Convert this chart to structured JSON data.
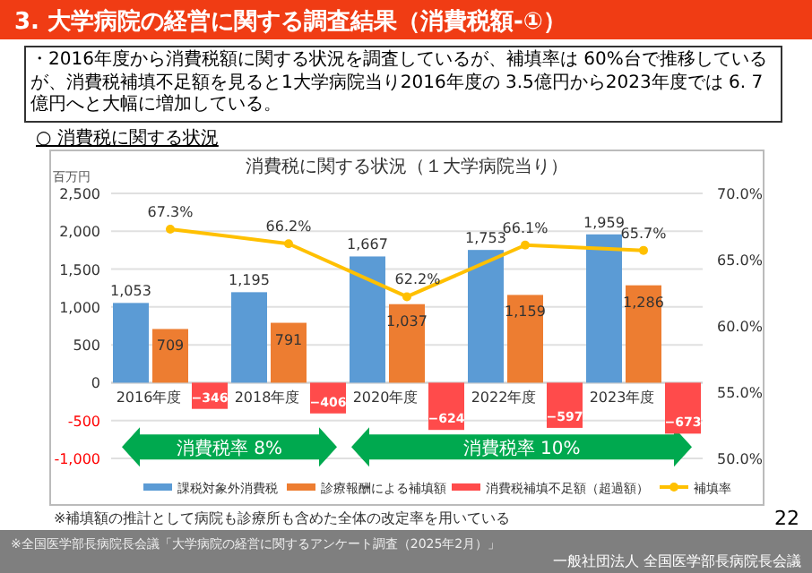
{
  "chart_data": {
    "type": "bar",
    "title": "消費税に関する状況（１大学病院当り）",
    "ylabel": "百万円",
    "categories": [
      "2016年度",
      "2018年度",
      "2020年度",
      "2022年度",
      "2023年度"
    ],
    "series": [
      {
        "name": "課税対象外消費税",
        "color": "#5b9bd5",
        "values": [
          1053,
          1195,
          1667,
          1753,
          1959
        ],
        "value_labels": [
          "1,053",
          "1,195",
          "1,667",
          "1,753",
          "1,959"
        ]
      },
      {
        "name": "診療報酬による補填額",
        "color": "#ed7d31",
        "values": [
          709,
          791,
          1037,
          1159,
          1286
        ],
        "value_labels": [
          "709",
          "791",
          "1,037",
          "1,159",
          "1,286"
        ]
      },
      {
        "name": "消費税補填不足額（超過額）",
        "color": "#ff4b4b",
        "values": [
          -346,
          -406,
          -624,
          -597,
          -673
        ]
      },
      {
        "name": "補填率",
        "type": "line",
        "axis": "y2",
        "color": "#ffc000",
        "marker": "circle",
        "values": [
          67.3,
          66.2,
          62.2,
          66.1,
          65.7
        ],
        "value_labels": [
          "67.3%",
          "66.2%",
          "62.2%",
          "66.1%",
          "65.7%"
        ]
      }
    ],
    "ylim": [
      -1000,
      2500
    ],
    "yticks": [
      {
        "value": -1000,
        "label": "-1,000"
      },
      -500,
      0,
      500,
      {
        "value": 1000,
        "label": "1,000"
      },
      {
        "value": 1500,
        "label": "1,500"
      },
      {
        "value": 2000,
        "label": "2,000"
      },
      {
        "value": 2500,
        "label": "2,500"
      }
    ],
    "y2lim": [
      50,
      70
    ],
    "y2ticks": [
      {
        "value": 50,
        "label": "50.0%"
      },
      {
        "value": 55,
        "label": "55.0%"
      },
      {
        "value": 60,
        "label": "60.0%"
      },
      {
        "value": 65,
        "label": "65.0%"
      },
      {
        "value": 70,
        "label": "70.0%"
      }
    ],
    "grid": "y",
    "legend": "bottom",
    "data_labels": true,
    "annotations": [
      "3. 大学病院の経営に関する調査結果（消費税額-①）",
      "・2016年度から消費税額に関する状況を調査しているが、補填率は 60%台で推移しているが、消費税補填不足額を見ると1大学病院当り2016年度の 3.5億円から2023年度では 6. 7億円へと大幅に増加している。",
      "○ 消費税に関する状況",
      "消費税率 8%",
      "消費税率 10%",
      "※補填額の推計として病院も診療所も含めた全体の改定率を用いている",
      "22",
      "※全国医学部長病院長会議「大学病院の経営に関するアンケート調査（2025年2月）」",
      "一般社団法人 全国医学部長病院長会議"
    ]
  }
}
